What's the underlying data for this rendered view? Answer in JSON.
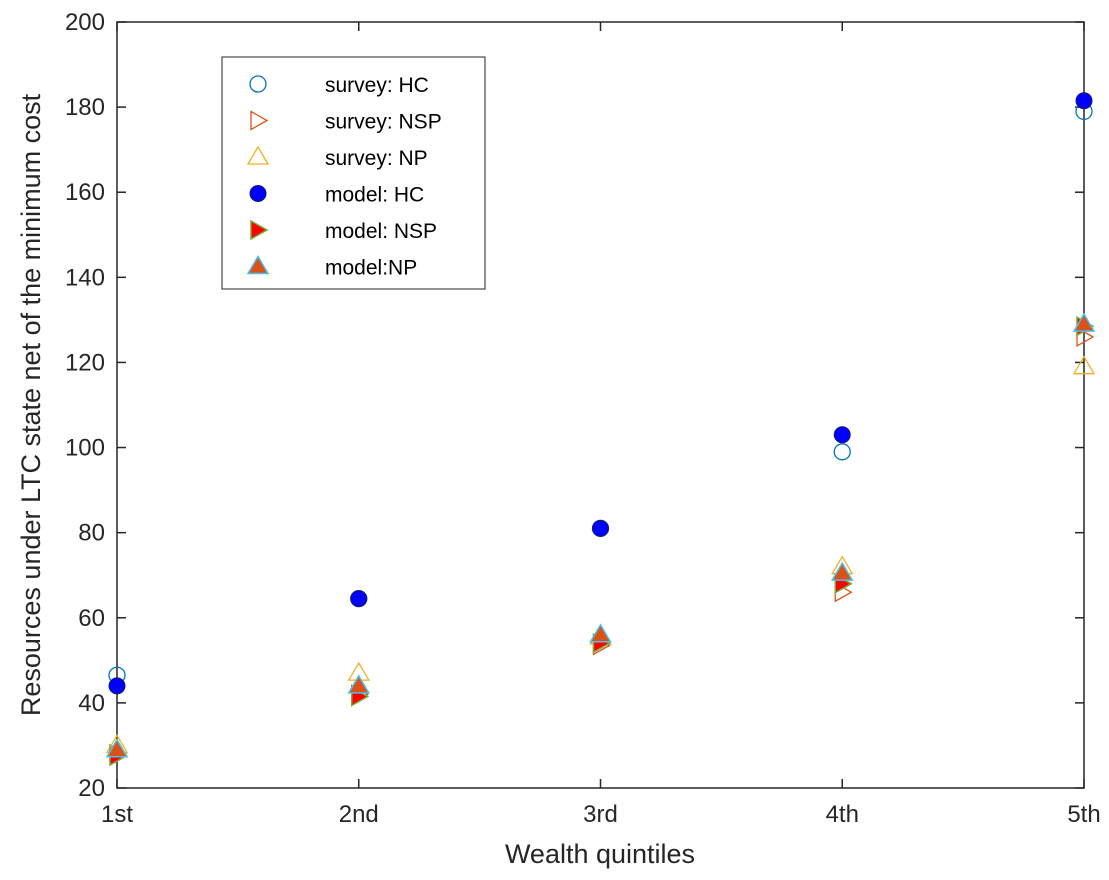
{
  "chart_data": {
    "type": "scatter",
    "title": "",
    "xlabel": "Wealth quintiles",
    "ylabel": "Resources under LTC state net of the minimum cost",
    "categories": [
      "1st",
      "2nd",
      "3rd",
      "4th",
      "5th"
    ],
    "ylim": [
      20,
      200
    ],
    "yticks": [
      20,
      40,
      60,
      80,
      100,
      120,
      140,
      160,
      180,
      200
    ],
    "grid": false,
    "legend_position": "top-left",
    "series": [
      {
        "name": "survey: HC",
        "marker": "circle-open",
        "color": "#0072BD",
        "values": [
          46.5,
          64.5,
          81,
          99,
          179
        ]
      },
      {
        "name": "survey: NSP",
        "marker": "triangle-right-open",
        "color": "#D95319",
        "values": [
          28,
          42,
          53.5,
          66,
          126
        ]
      },
      {
        "name": "survey: NP",
        "marker": "triangle-up-open",
        "color": "#EDB120",
        "values": [
          30,
          47,
          55.5,
          72,
          119
        ]
      },
      {
        "name": "model: HC",
        "marker": "circle-filled",
        "color": "#0000FF",
        "values": [
          44,
          64.5,
          81,
          103,
          181.5
        ]
      },
      {
        "name": "model: NSP",
        "marker": "triangle-right-filled",
        "color": "#FF0000",
        "edge": "#77AC30",
        "values": [
          27.5,
          41.5,
          54,
          68,
          128.5
        ]
      },
      {
        "name": "model:NP",
        "marker": "triangle-up-filled",
        "color": "#D95319",
        "edge": "#4DBEEE",
        "values": [
          29,
          44,
          56,
          70.5,
          129
        ]
      }
    ]
  }
}
